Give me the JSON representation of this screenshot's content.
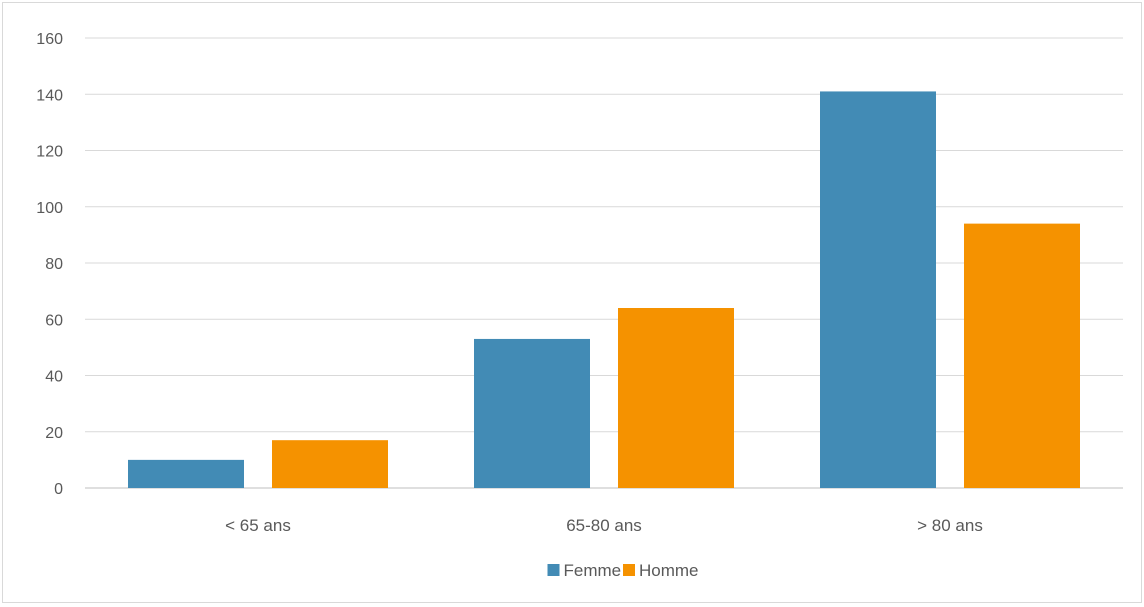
{
  "chart_data": {
    "type": "bar",
    "categories": [
      "< 65 ans",
      "65-80 ans",
      "> 80 ans"
    ],
    "series": [
      {
        "name": "Femme",
        "values": [
          10,
          53,
          141
        ],
        "color": "#428bb5"
      },
      {
        "name": "Homme",
        "values": [
          17,
          64,
          94
        ],
        "color": "#f59200"
      }
    ],
    "title": "",
    "xlabel": "",
    "ylabel": "",
    "ylim": [
      0,
      160
    ],
    "yticks": [
      0,
      20,
      40,
      60,
      80,
      100,
      120,
      140,
      160
    ],
    "grid": true,
    "legend": "bottom-center"
  }
}
